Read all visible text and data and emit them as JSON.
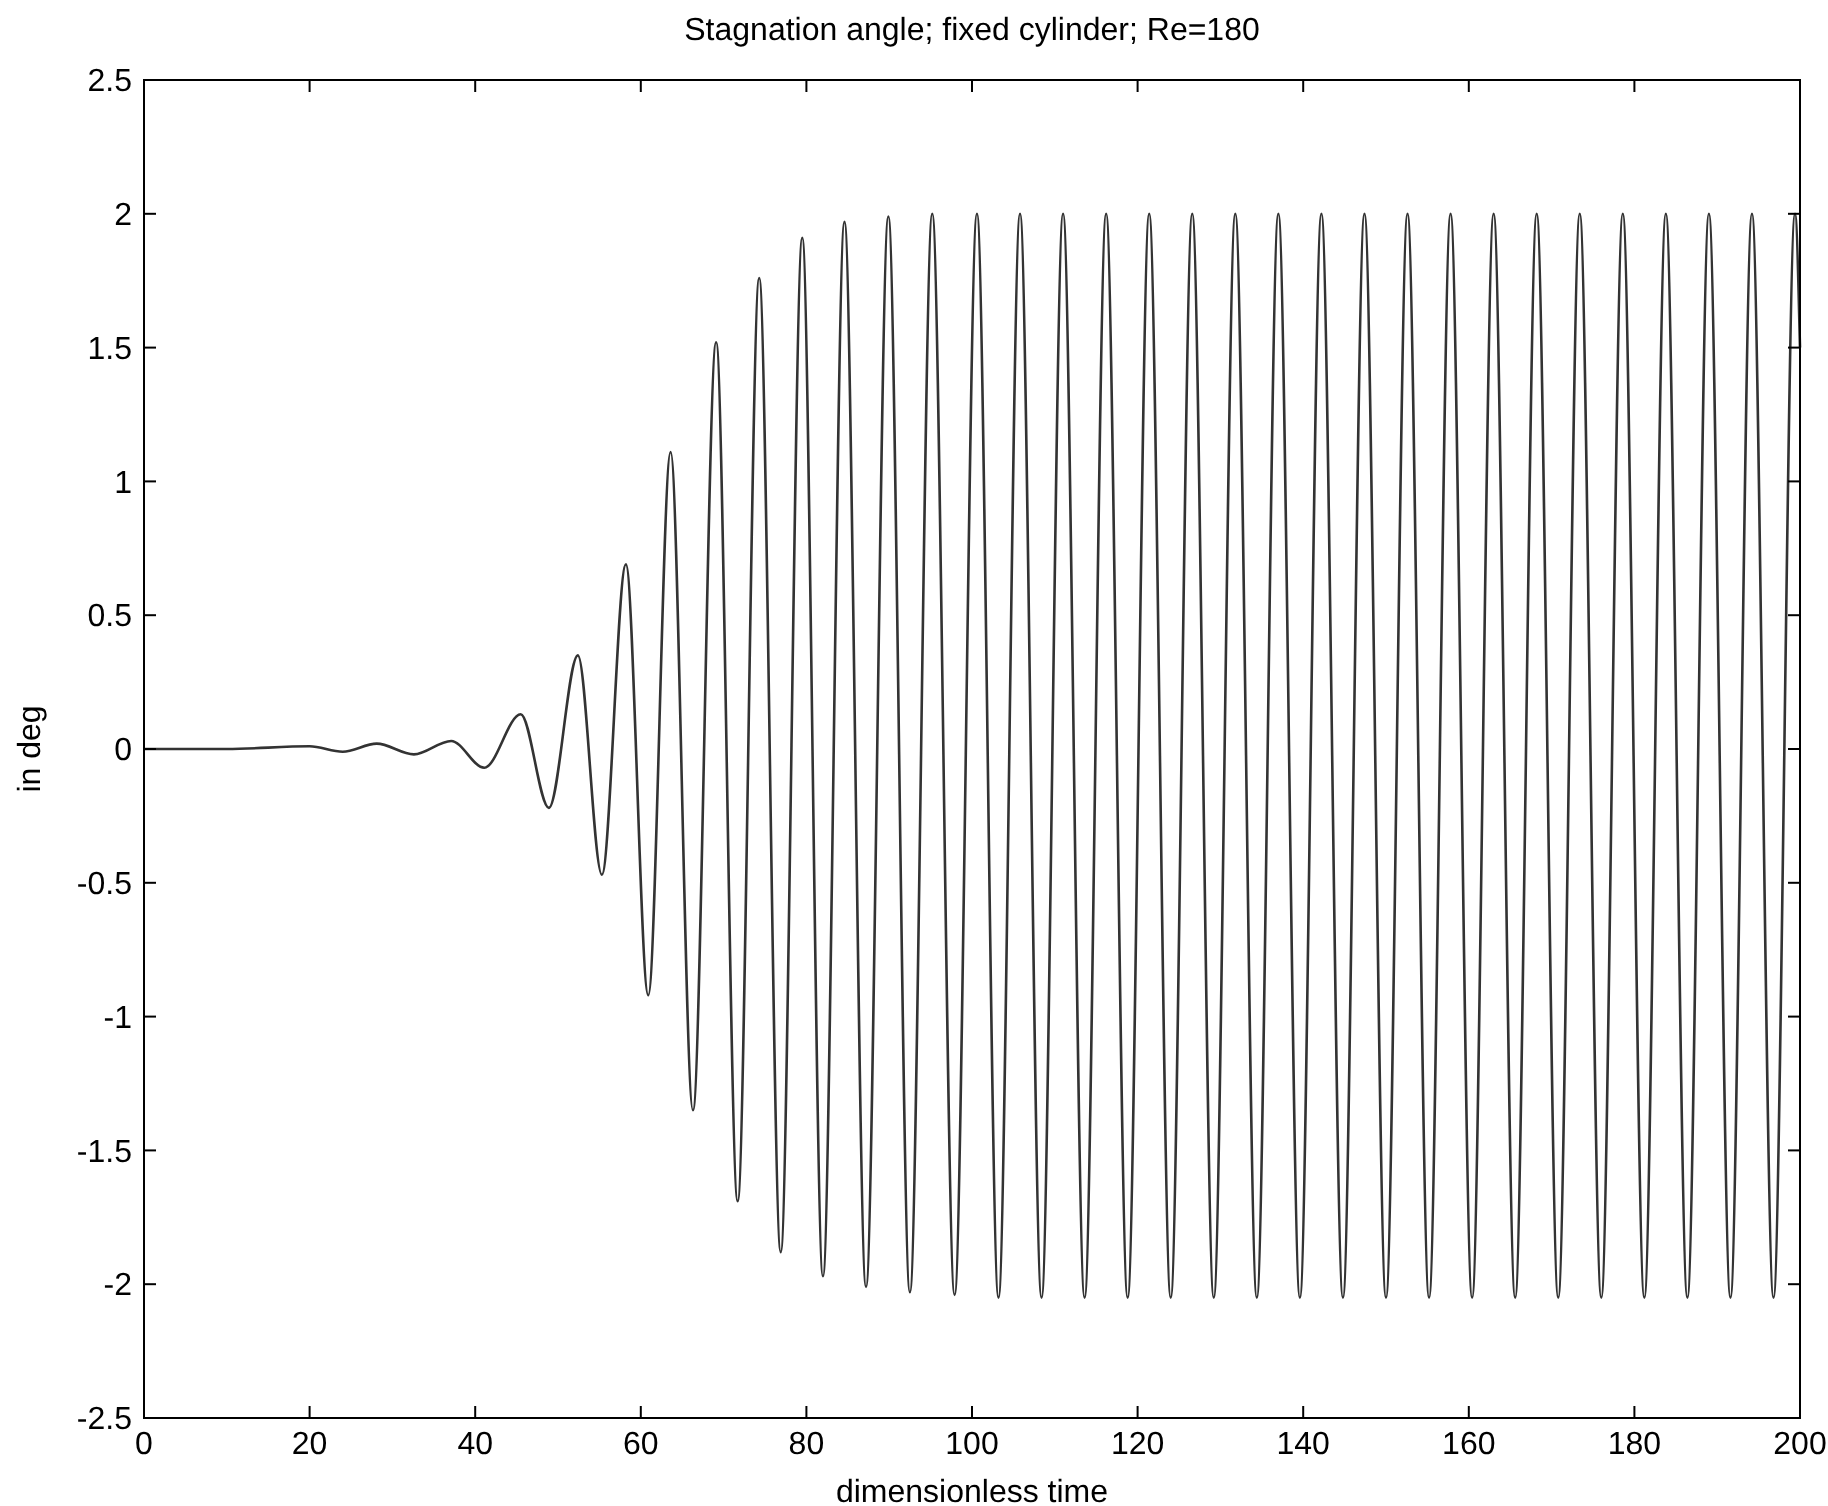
{
  "chart_data": {
    "type": "line",
    "title": "Stagnation angle; fixed cylinder; Re=180",
    "xlabel": "dimensionless time",
    "ylabel": "in deg",
    "x": [
      0,
      10,
      20,
      24,
      28.1,
      32.6,
      37.1,
      41.1,
      45.5,
      48.9,
      52.4,
      55.3,
      58.2,
      60.9,
      63.6,
      66.3,
      69.1,
      71.7,
      74.3,
      76.9,
      79.5,
      82.0,
      84.6,
      87.2,
      89.9,
      92.5,
      95.2,
      97.9,
      100.6,
      103.2,
      105.8,
      108.4,
      111.0,
      113.6,
      116.2,
      118.8,
      121.4,
      124.0,
      126.6,
      129.2,
      131.8,
      134.4,
      137.0,
      139.6,
      142.2,
      144.8,
      147.4,
      150.0,
      152.6,
      155.2,
      157.8,
      160.4,
      163.0,
      165.6,
      168.2,
      170.8,
      173.4,
      176.0,
      178.6,
      181.2,
      183.8,
      186.4,
      189.0,
      191.6,
      194.2,
      196.8,
      199.4,
      200
    ],
    "series": [
      {
        "color": "#333333",
        "values": [
          0,
          0,
          0.01,
          -0.01,
          0.02,
          -0.02,
          0.03,
          -0.07,
          0.13,
          -0.22,
          0.35,
          -0.47,
          0.69,
          -0.92,
          1.11,
          -1.35,
          1.52,
          -1.69,
          1.76,
          -1.88,
          1.91,
          -1.97,
          1.97,
          -2.01,
          1.99,
          -2.03,
          2.0,
          -2.04,
          2.0,
          -2.05,
          2.0,
          -2.05,
          2.0,
          -2.05,
          2.0,
          -2.05,
          2.0,
          -2.05,
          2.0,
          -2.05,
          2.0,
          -2.05,
          2.0,
          -2.05,
          2.0,
          -2.05,
          2.0,
          -2.05,
          2.0,
          -2.05,
          2.0,
          -2.05,
          2.0,
          -2.05,
          2.0,
          -2.05,
          2.0,
          -2.05,
          2.0,
          -2.05,
          2.0,
          -2.05,
          2.0,
          -2.05,
          2.0,
          -2.05,
          2.0,
          1.5
        ]
      }
    ],
    "xlim": [
      0,
      200
    ],
    "xticks": [
      0,
      20,
      40,
      60,
      80,
      100,
      120,
      140,
      160,
      180,
      200
    ],
    "ylim": [
      -2.5,
      2.5
    ],
    "yticks": [
      -2.5,
      -2,
      -1.5,
      -1,
      -0.5,
      0,
      0.5,
      1,
      1.5,
      2,
      2.5
    ],
    "grid": false,
    "marker": "none",
    "line_style": "solid"
  }
}
